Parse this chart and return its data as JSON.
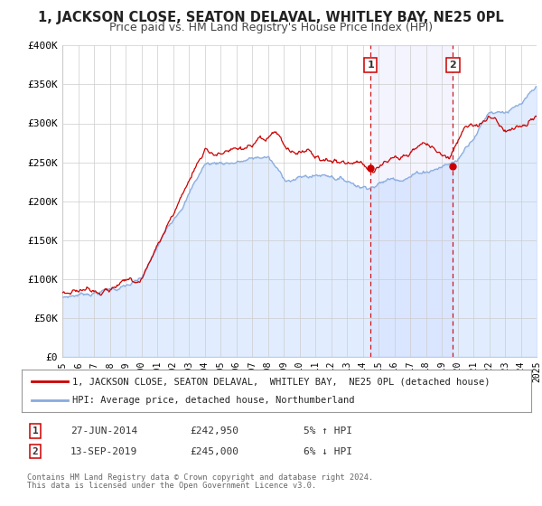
{
  "title": "1, JACKSON CLOSE, SEATON DELAVAL, WHITLEY BAY, NE25 0PL",
  "subtitle": "Price paid vs. HM Land Registry's House Price Index (HPI)",
  "ylim": [
    0,
    400000
  ],
  "yticks": [
    0,
    50000,
    100000,
    150000,
    200000,
    250000,
    300000,
    350000,
    400000
  ],
  "ytick_labels": [
    "£0",
    "£50K",
    "£100K",
    "£150K",
    "£200K",
    "£250K",
    "£300K",
    "£350K",
    "£400K"
  ],
  "x_start_year": 1995,
  "x_end_year": 2025,
  "sale1_year": 2014.49,
  "sale1_value": 242950,
  "sale1_label": "1",
  "sale1_date": "27-JUN-2014",
  "sale1_price": "£242,950",
  "sale1_hpi": "5% ↑ HPI",
  "sale2_year": 2019.71,
  "sale2_value": 245000,
  "sale2_label": "2",
  "sale2_date": "13-SEP-2019",
  "sale2_price": "£245,000",
  "sale2_hpi": "6% ↓ HPI",
  "legend_line1": "1, JACKSON CLOSE, SEATON DELAVAL,  WHITLEY BAY,  NE25 0PL (detached house)",
  "legend_line2": "HPI: Average price, detached house, Northumberland",
  "footer1": "Contains HM Land Registry data © Crown copyright and database right 2024.",
  "footer2": "This data is licensed under the Open Government Licence v3.0.",
  "line_color_red": "#cc0000",
  "line_color_blue": "#aaccff",
  "line_color_blue_stroke": "#88aadd",
  "bg_color": "#ffffff",
  "grid_color": "#cccccc",
  "title_fontsize": 10.5,
  "subtitle_fontsize": 9
}
